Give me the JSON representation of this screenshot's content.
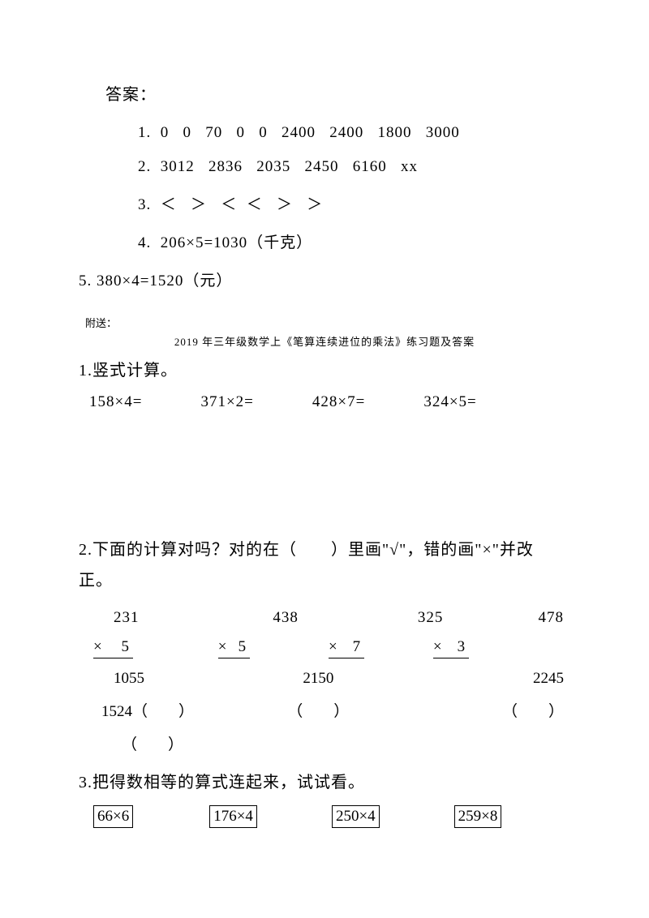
{
  "answer_title": "答案：",
  "answer_lines": {
    "line1": "1.  0   0   70   0   0   2400   2400   1800   3000",
    "line2": "2.  3012   2836   2035   2450   6160   xx",
    "line3": "3.  ＜   ＞   ＜  ＜   ＞   ＞",
    "line4": "4.  206×5=1030（千克）",
    "line5": "5.  380×4=1520（元）"
  },
  "attachment": "附送：",
  "attachment_title": "2019 年三年级数学上《笔算连续进位的乘法》练习题及答案",
  "section1": "1.竖式计算。",
  "problems": {
    "p1": "158×4=",
    "p2": "371×2=",
    "p3": "428×7=",
    "p4": "324×5="
  },
  "section2": "2.下面的计算对吗？对的在（　　）里画\"√\"，错的画\"×\"并改正。",
  "calc": {
    "nums": {
      "n1": "231",
      "n2": "438",
      "n3": "325",
      "n4": "478"
    },
    "mult": {
      "m1": "×     5 ",
      "m2": "×   5 ",
      "m3": "×    7 ",
      "m4": "×    3 "
    },
    "results": {
      "r1": "1055",
      "r2": "2150",
      "r3": "2245"
    },
    "checks": {
      "c1": "1524（　　）",
      "c2": "（　　）",
      "c3": "（　　）",
      "c4": "（　　）"
    }
  },
  "section3": "3.把得数相等的算式连起来，试试看。",
  "boxed": {
    "b1": "66×6",
    "b2": "176×4",
    "b3": "250×4",
    "b4": "259×8"
  }
}
